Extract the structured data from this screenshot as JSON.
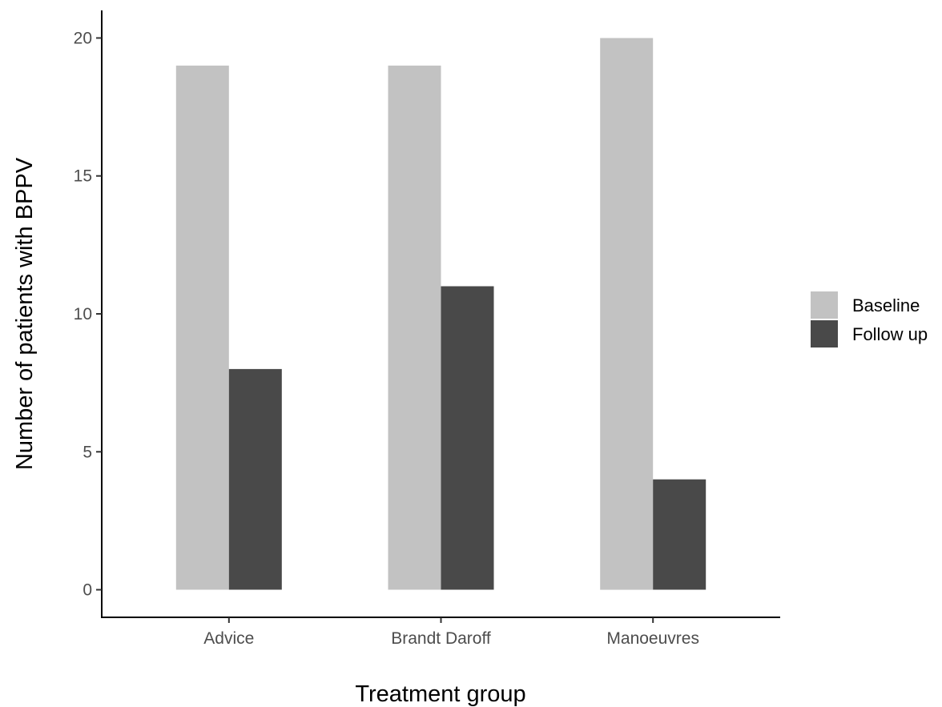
{
  "chart_data": {
    "type": "bar",
    "categories": [
      "Advice",
      "Brandt Daroff",
      "Manoeuvres"
    ],
    "series": [
      {
        "name": "Baseline",
        "values": [
          19,
          19,
          20
        ],
        "color": "#c2c2c2"
      },
      {
        "name": "Follow up",
        "values": [
          8,
          11,
          4
        ],
        "color": "#494949"
      }
    ],
    "xlabel": "Treatment group",
    "ylabel": "Number of patients with BPPV",
    "ylim": [
      -1,
      21
    ],
    "yticks": [
      0,
      5,
      10,
      15,
      20
    ],
    "grid": false,
    "legend_position": "right"
  }
}
